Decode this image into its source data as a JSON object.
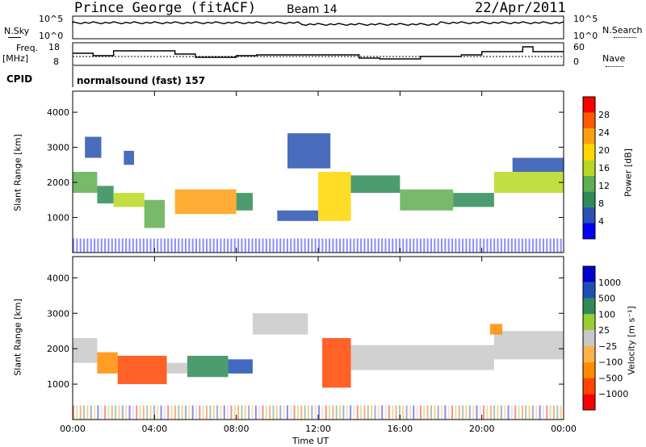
{
  "header": {
    "radar": "Prince George (fitACF)",
    "beam": "Beam 14",
    "date": "22/Apr/2011"
  },
  "strip_nsky": {
    "left_label": "N.Sky",
    "right_label": "N.Search",
    "ticks": [
      "10^5",
      "10^0"
    ]
  },
  "strip_freq": {
    "left_label_1": "Freq.",
    "left_label_2": "[MHz]",
    "left_ticks": [
      "18",
      "8"
    ],
    "right_ticks": [
      "60",
      "0"
    ],
    "right_label": "Nave"
  },
  "cpid": {
    "label": "CPID",
    "value": "normalsound (fast) 157"
  },
  "colors": {
    "power": [
      "#0000ff",
      "#2a52b0",
      "#2e8b57",
      "#5fae50",
      "#b8d820",
      "#ffd700",
      "#ff9f10",
      "#ff5a00",
      "#ff0000"
    ],
    "velocity": [
      "#ff0000",
      "#ff4500",
      "#ff8c00",
      "#ffb347",
      "#c8c8c8",
      "#9acd32",
      "#2e8b57",
      "#1e50b4",
      "#0000cd"
    ],
    "ground_scatter": "#c8c8c8"
  },
  "chart_data": [
    {
      "type": "heatmap",
      "panel": "power",
      "ylabel": "Slant Range [km]",
      "xlabel": "Time UT",
      "x_ticks": [
        "00:00",
        "04:00",
        "08:00",
        "12:00",
        "16:00",
        "20:00",
        "00:00"
      ],
      "y_ticks": [
        1000,
        2000,
        3000,
        4000
      ],
      "ylim": [
        0,
        4600
      ],
      "xlim_hours": [
        0,
        24
      ],
      "colorbar": {
        "label": "Power [dB]",
        "ticks": [
          4,
          8,
          12,
          16,
          20,
          24,
          28
        ],
        "range": [
          0,
          32
        ]
      },
      "blobs": [
        {
          "t0": 0.0,
          "t1": 1.2,
          "r0": 1700,
          "r1": 2300,
          "level": 12
        },
        {
          "t0": 0.6,
          "t1": 1.4,
          "r0": 2700,
          "r1": 3300,
          "level": 4
        },
        {
          "t0": 1.2,
          "t1": 2.0,
          "r0": 1400,
          "r1": 1900,
          "level": 8
        },
        {
          "t0": 2.0,
          "t1": 3.5,
          "r0": 1300,
          "r1": 1700,
          "level": 16
        },
        {
          "t0": 2.5,
          "t1": 3.0,
          "r0": 2500,
          "r1": 2900,
          "level": 4
        },
        {
          "t0": 3.5,
          "t1": 4.5,
          "r0": 700,
          "r1": 1500,
          "level": 12
        },
        {
          "t0": 5.0,
          "t1": 8.0,
          "r0": 1100,
          "r1": 1800,
          "level": 24
        },
        {
          "t0": 8.0,
          "t1": 8.8,
          "r0": 1200,
          "r1": 1700,
          "level": 8
        },
        {
          "t0": 10.0,
          "t1": 12.0,
          "r0": 900,
          "r1": 1200,
          "level": 4
        },
        {
          "t0": 10.5,
          "t1": 12.6,
          "r0": 2400,
          "r1": 3400,
          "level": 4
        },
        {
          "t0": 12.0,
          "t1": 13.6,
          "r0": 900,
          "r1": 2300,
          "level": 20
        },
        {
          "t0": 13.6,
          "t1": 16.0,
          "r0": 1700,
          "r1": 2200,
          "level": 8
        },
        {
          "t0": 16.0,
          "t1": 18.6,
          "r0": 1200,
          "r1": 1800,
          "level": 12
        },
        {
          "t0": 18.6,
          "t1": 20.6,
          "r0": 1300,
          "r1": 1700,
          "level": 8
        },
        {
          "t0": 20.6,
          "t1": 24.0,
          "r0": 1700,
          "r1": 2300,
          "level": 16
        },
        {
          "t0": 21.5,
          "t1": 24.0,
          "r0": 2300,
          "r1": 2700,
          "level": 4
        }
      ]
    },
    {
      "type": "heatmap",
      "panel": "velocity",
      "ylabel": "Slant Range [km]",
      "xlabel": "Time UT",
      "x_ticks": [
        "00:00",
        "04:00",
        "08:00",
        "12:00",
        "16:00",
        "20:00",
        "00:00"
      ],
      "y_ticks": [
        1000,
        2000,
        3000,
        4000
      ],
      "ylim": [
        0,
        4600
      ],
      "xlim_hours": [
        0,
        24
      ],
      "colorbar": {
        "label": "Velocity [m s⁻¹]",
        "ticks": [
          "1000",
          "500",
          "100",
          "25",
          "−25",
          "−100",
          "−500",
          "−1000"
        ]
      },
      "blobs": [
        {
          "t0": 0.0,
          "t1": 1.2,
          "r0": 1600,
          "r1": 2300,
          "level": "ground"
        },
        {
          "t0": 1.2,
          "t1": 2.2,
          "r0": 1300,
          "r1": 1900,
          "level": -100
        },
        {
          "t0": 2.2,
          "t1": 4.6,
          "r0": 1000,
          "r1": 1800,
          "level": -500
        },
        {
          "t0": 4.6,
          "t1": 5.6,
          "r0": 1300,
          "r1": 1600,
          "level": "ground"
        },
        {
          "t0": 5.6,
          "t1": 7.6,
          "r0": 1200,
          "r1": 1800,
          "level": 100
        },
        {
          "t0": 7.6,
          "t1": 8.8,
          "r0": 1300,
          "r1": 1700,
          "level": 500
        },
        {
          "t0": 8.8,
          "t1": 11.5,
          "r0": 2400,
          "r1": 3000,
          "level": "ground"
        },
        {
          "t0": 12.2,
          "t1": 13.6,
          "r0": 900,
          "r1": 2300,
          "level": -500
        },
        {
          "t0": 13.6,
          "t1": 20.6,
          "r0": 1400,
          "r1": 2100,
          "level": "ground"
        },
        {
          "t0": 20.6,
          "t1": 24.0,
          "r0": 1700,
          "r1": 2500,
          "level": "ground"
        },
        {
          "t0": 20.4,
          "t1": 21.0,
          "r0": 2400,
          "r1": 2700,
          "level": -100
        }
      ]
    }
  ]
}
